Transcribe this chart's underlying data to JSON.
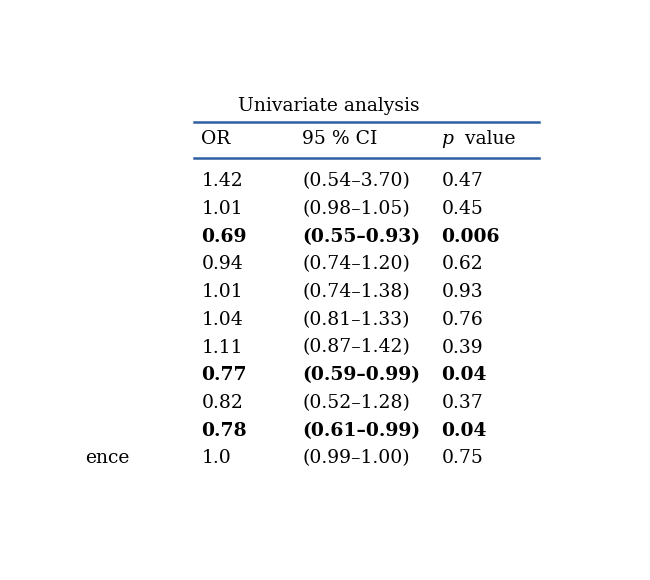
{
  "title": "Univariate analysis",
  "headers": [
    "OR",
    "95 % CI",
    "p value"
  ],
  "rows": [
    {
      "or": "1.42",
      "ci": "(0.54–3.70)",
      "p": "0.47",
      "bold": false
    },
    {
      "or": "1.01",
      "ci": "(0.98–1.05)",
      "p": "0.45",
      "bold": false
    },
    {
      "or": "0.69",
      "ci": "(0.55–0.93)",
      "p": "0.006",
      "bold": true
    },
    {
      "or": "0.94",
      "ci": "(0.74–1.20)",
      "p": "0.62",
      "bold": false
    },
    {
      "or": "1.01",
      "ci": "(0.74–1.38)",
      "p": "0.93",
      "bold": false
    },
    {
      "or": "1.04",
      "ci": "(0.81–1.33)",
      "p": "0.76",
      "bold": false
    },
    {
      "or": "1.11",
      "ci": "(0.87–1.42)",
      "p": "0.39",
      "bold": false
    },
    {
      "or": "0.77",
      "ci": "(0.59–0.99)",
      "p": "0.04",
      "bold": true
    },
    {
      "or": "0.82",
      "ci": "(0.52–1.28)",
      "p": "0.37",
      "bold": false
    },
    {
      "or": "0.78",
      "ci": "(0.61–0.99)",
      "p": "0.04",
      "bold": true
    },
    {
      "or": "1.0",
      "ci": "(0.99–1.00)",
      "p": "0.75",
      "bold": false
    }
  ],
  "partial_left_label": "ence",
  "header_line_color": "#2E5FA3",
  "bg_color": "#ffffff",
  "text_color": "#000000",
  "font_size": 13.5,
  "title_font_size": 13.5,
  "header_font_size": 13.5
}
